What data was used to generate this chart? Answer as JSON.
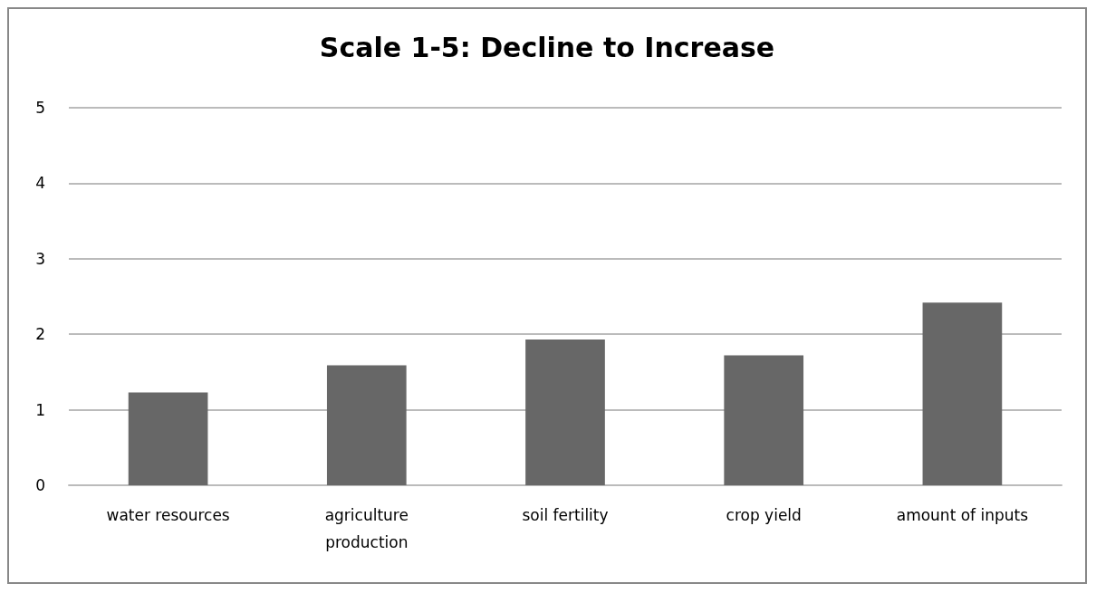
{
  "chart_data": {
    "type": "bar",
    "title": "Scale 1-5: Decline to Increase",
    "categories": [
      "water resources",
      "agriculture\nproduction",
      "soil fertility",
      "crop yield",
      "amount of inputs"
    ],
    "values": [
      1.23,
      1.59,
      1.93,
      1.72,
      2.42
    ],
    "color": "#676767",
    "ylim": [
      0,
      5
    ],
    "yticks": [
      0,
      1,
      2,
      3,
      4,
      5
    ],
    "grid": "y"
  }
}
